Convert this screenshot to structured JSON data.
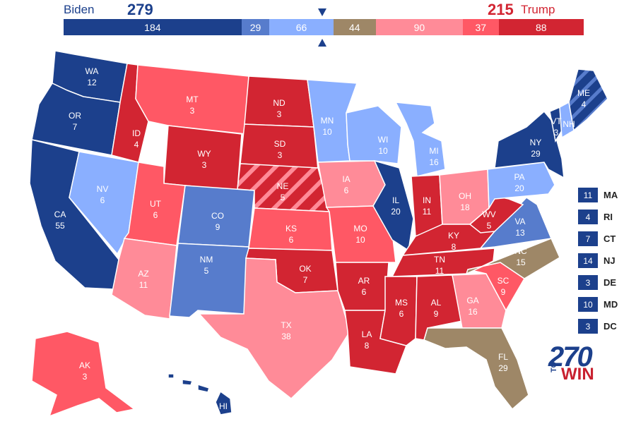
{
  "header": {
    "biden_name": "Biden",
    "biden_total": "279",
    "trump_total": "215",
    "trump_name": "Trump"
  },
  "bar_segments": [
    {
      "label": "184",
      "value": 184,
      "color": "#1c408c"
    },
    {
      "label": "29",
      "value": 29,
      "color": "#577ccc"
    },
    {
      "label": "66",
      "value": 66,
      "color": "#8aafff"
    },
    {
      "label": "44",
      "value": 44,
      "color": "#9e8767"
    },
    {
      "label": "90",
      "value": 90,
      "color": "#ff8b98"
    },
    {
      "label": "37",
      "value": 37,
      "color": "#ff5865"
    },
    {
      "label": "88",
      "value": 88,
      "color": "#d22532"
    }
  ],
  "colors": {
    "safe_d": "#1c408c",
    "likely_d": "#577ccc",
    "lean_d": "#8aafff",
    "tossup": "#9e8767",
    "lean_r": "#ff8b98",
    "likely_r": "#ff5865",
    "safe_r": "#d22532"
  },
  "states": {
    "WA": {
      "abbr": "WA",
      "ev": "12",
      "rating": "safe_d"
    },
    "OR": {
      "abbr": "OR",
      "ev": "7",
      "rating": "safe_d"
    },
    "CA": {
      "abbr": "CA",
      "ev": "55",
      "rating": "safe_d"
    },
    "NV": {
      "abbr": "NV",
      "ev": "6",
      "rating": "lean_d"
    },
    "ID": {
      "abbr": "ID",
      "ev": "4",
      "rating": "safe_r"
    },
    "MT": {
      "abbr": "MT",
      "ev": "3",
      "rating": "likely_r"
    },
    "WY": {
      "abbr": "WY",
      "ev": "3",
      "rating": "safe_r"
    },
    "UT": {
      "abbr": "UT",
      "ev": "6",
      "rating": "likely_r"
    },
    "AZ": {
      "abbr": "AZ",
      "ev": "11",
      "rating": "lean_r"
    },
    "CO": {
      "abbr": "CO",
      "ev": "9",
      "rating": "likely_d"
    },
    "NM": {
      "abbr": "NM",
      "ev": "5",
      "rating": "likely_d"
    },
    "ND": {
      "abbr": "ND",
      "ev": "3",
      "rating": "safe_r"
    },
    "SD": {
      "abbr": "SD",
      "ev": "3",
      "rating": "safe_r"
    },
    "NE": {
      "abbr": "NE",
      "ev": "5",
      "rating": "safe_r"
    },
    "KS": {
      "abbr": "KS",
      "ev": "6",
      "rating": "likely_r"
    },
    "OK": {
      "abbr": "OK",
      "ev": "7",
      "rating": "safe_r"
    },
    "TX": {
      "abbr": "TX",
      "ev": "38",
      "rating": "lean_r"
    },
    "MN": {
      "abbr": "MN",
      "ev": "10",
      "rating": "lean_d"
    },
    "IA": {
      "abbr": "IA",
      "ev": "6",
      "rating": "lean_r"
    },
    "MO": {
      "abbr": "MO",
      "ev": "10",
      "rating": "likely_r"
    },
    "AR": {
      "abbr": "AR",
      "ev": "6",
      "rating": "safe_r"
    },
    "LA": {
      "abbr": "LA",
      "ev": "8",
      "rating": "safe_r"
    },
    "WI": {
      "abbr": "WI",
      "ev": "10",
      "rating": "lean_d"
    },
    "IL": {
      "abbr": "IL",
      "ev": "20",
      "rating": "safe_d"
    },
    "MI": {
      "abbr": "MI",
      "ev": "16",
      "rating": "lean_d"
    },
    "IN": {
      "abbr": "IN",
      "ev": "11",
      "rating": "safe_r"
    },
    "OH": {
      "abbr": "OH",
      "ev": "18",
      "rating": "lean_r"
    },
    "KY": {
      "abbr": "KY",
      "ev": "8",
      "rating": "safe_r"
    },
    "TN": {
      "abbr": "TN",
      "ev": "11",
      "rating": "safe_r"
    },
    "MS": {
      "abbr": "MS",
      "ev": "6",
      "rating": "safe_r"
    },
    "AL": {
      "abbr": "AL",
      "ev": "9",
      "rating": "safe_r"
    },
    "GA": {
      "abbr": "GA",
      "ev": "16",
      "rating": "lean_r"
    },
    "FL": {
      "abbr": "FL",
      "ev": "29",
      "rating": "tossup"
    },
    "SC": {
      "abbr": "SC",
      "ev": "9",
      "rating": "likely_r"
    },
    "NC": {
      "abbr": "NC",
      "ev": "15",
      "rating": "tossup"
    },
    "VA": {
      "abbr": "VA",
      "ev": "13",
      "rating": "likely_d"
    },
    "WV": {
      "abbr": "WV",
      "ev": "5",
      "rating": "safe_r"
    },
    "PA": {
      "abbr": "PA",
      "ev": "20",
      "rating": "lean_d"
    },
    "NY": {
      "abbr": "NY",
      "ev": "29",
      "rating": "safe_d"
    },
    "VT": {
      "abbr": "VT",
      "ev": "3",
      "rating": "safe_d"
    },
    "NH": {
      "abbr": "NH",
      "ev": "4",
      "rating": "lean_d"
    },
    "ME": {
      "abbr": "ME",
      "ev": "4",
      "rating": "safe_d"
    },
    "AK": {
      "abbr": "AK",
      "ev": "3",
      "rating": "likely_r"
    },
    "HI": {
      "abbr": "HI",
      "ev": "4",
      "rating": "safe_d"
    }
  },
  "small_states": [
    {
      "ev": "11",
      "abbr": "MA"
    },
    {
      "ev": "4",
      "abbr": "RI"
    },
    {
      "ev": "7",
      "abbr": "CT"
    },
    {
      "ev": "14",
      "abbr": "NJ"
    },
    {
      "ev": "3",
      "abbr": "DE"
    },
    {
      "ev": "10",
      "abbr": "MD"
    },
    {
      "ev": "3",
      "abbr": "DC"
    }
  ],
  "logo": {
    "number": "270",
    "to": "TO",
    "win": "WIN"
  }
}
